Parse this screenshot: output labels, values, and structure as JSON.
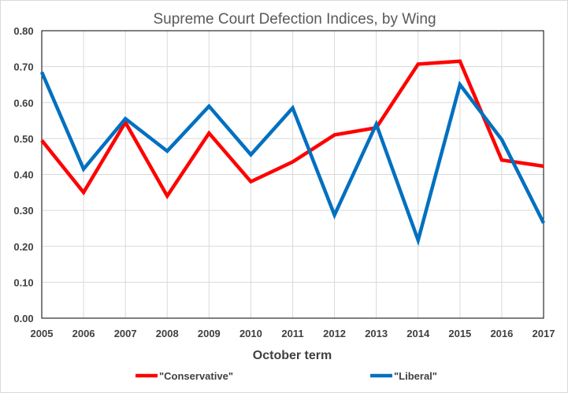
{
  "chart_data": {
    "type": "line",
    "title": "Supreme Court Defection Indices, by Wing",
    "xlabel": "October term",
    "ylabel": "",
    "x": [
      "2005",
      "2006",
      "2007",
      "2008",
      "2009",
      "2010",
      "2011",
      "2012",
      "2013",
      "2014",
      "2015",
      "2016",
      "2017"
    ],
    "ylim": [
      0,
      0.8
    ],
    "yticks": [
      "0.00",
      "0.10",
      "0.20",
      "0.30",
      "0.40",
      "0.50",
      "0.60",
      "0.70",
      "0.80"
    ],
    "grid": true,
    "legend_position": "bottom",
    "series": [
      {
        "name": "\"Conservative\"",
        "color": "#ff0000",
        "values": [
          0.495,
          0.35,
          0.545,
          0.34,
          0.515,
          0.38,
          0.435,
          0.51,
          0.53,
          0.707,
          0.715,
          0.44,
          0.423
        ]
      },
      {
        "name": "\"Liberal\"",
        "color": "#0070c0",
        "values": [
          0.685,
          0.415,
          0.555,
          0.465,
          0.59,
          0.455,
          0.585,
          0.287,
          0.54,
          0.217,
          0.65,
          0.497,
          0.265
        ]
      }
    ]
  }
}
